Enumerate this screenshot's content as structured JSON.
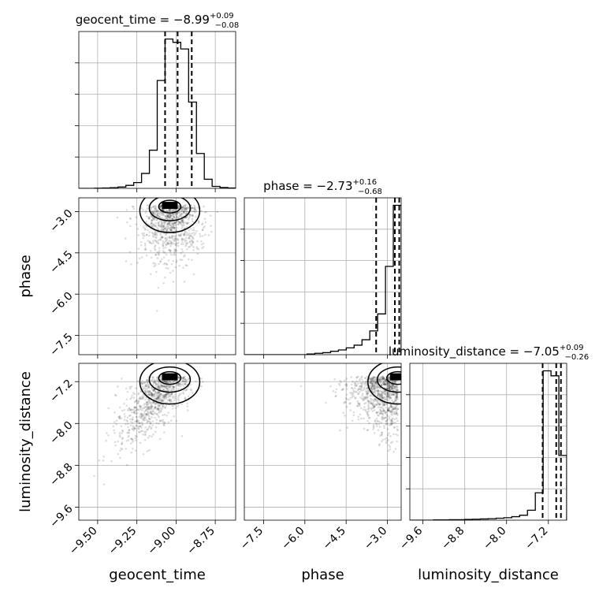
{
  "chart_data": {
    "type": "corner",
    "parameters": [
      {
        "name": "geocent_time",
        "xlabel": "geocent_time",
        "title_label": "geocent_time",
        "median": "−8.99",
        "upper": "+0.09",
        "lower": "−0.08",
        "range": [
          -9.62,
          -8.62
        ],
        "ticks": [
          -9.5,
          -9.25,
          -9.0,
          -8.75
        ],
        "tick_labels": [
          "−9.50",
          "−9.25",
          "−9.00",
          "−8.75"
        ],
        "quantiles": [
          -9.07,
          -8.99,
          -8.9
        ],
        "hist_edges": [
          -9.62,
          -9.57,
          -9.52,
          -9.47,
          -9.42,
          -9.37,
          -9.32,
          -9.27,
          -9.22,
          -9.17,
          -9.12,
          -9.07,
          -9.02,
          -8.97,
          -8.92,
          -8.87,
          -8.82,
          -8.77,
          -8.72,
          -8.67,
          -8.62
        ],
        "hist_counts": [
          0,
          0,
          1,
          2,
          4,
          8,
          18,
          35,
          90,
          230,
          650,
          900,
          880,
          840,
          520,
          210,
          55,
          12,
          5,
          2
        ]
      },
      {
        "name": "phase",
        "xlabel": "phase",
        "ylabel": "phase",
        "title_label": "phase",
        "median": "−2.73",
        "upper": "+0.16",
        "lower": "−0.68",
        "range": [
          -8.2,
          -2.5
        ],
        "ticks": [
          -7.5,
          -6.0,
          -4.5,
          -3.0
        ],
        "tick_labels": [
          "−7.5",
          "−6.0",
          "−4.5",
          "−3.0"
        ],
        "quantiles": [
          -3.41,
          -2.73,
          -2.57
        ],
        "hist_edges": [
          -8.2,
          -7.915,
          -7.63,
          -7.345,
          -7.06,
          -6.775,
          -6.49,
          -6.205,
          -5.92,
          -5.635,
          -5.35,
          -5.065,
          -4.78,
          -4.495,
          -4.21,
          -3.925,
          -3.64,
          -3.355,
          -3.07,
          -2.785,
          -2.5
        ],
        "hist_counts": [
          0,
          0,
          0,
          0,
          0,
          0,
          0,
          0,
          1,
          2,
          3,
          5,
          7,
          10,
          14,
          22,
          35,
          60,
          130,
          220
        ]
      },
      {
        "name": "luminosity_distance",
        "xlabel": "luminosity_distance",
        "ylabel": "luminosity_distance",
        "title_label": "luminosity_distance",
        "median": "−7.05",
        "upper": "+0.09",
        "lower": "−0.26",
        "range": [
          -9.85,
          -6.85
        ],
        "ticks": [
          -9.6,
          -8.8,
          -8.0,
          -7.2
        ],
        "tick_labels": [
          "−9.6",
          "−8.8",
          "−8.0",
          "−7.2"
        ],
        "quantiles": [
          -7.31,
          -7.05,
          -6.96
        ],
        "hist_edges": [
          -9.85,
          -9.7,
          -9.55,
          -9.4,
          -9.25,
          -9.1,
          -8.95,
          -8.8,
          -8.65,
          -8.5,
          -8.35,
          -8.2,
          -8.05,
          -7.9,
          -7.75,
          -7.6,
          -7.45,
          -7.3,
          -7.15,
          -7.0,
          -6.85
        ],
        "hist_counts": [
          0,
          0,
          0,
          1,
          1,
          2,
          2,
          3,
          4,
          5,
          6,
          8,
          10,
          14,
          20,
          40,
          110,
          600,
          580,
          260
        ]
      }
    ],
    "pairs": [
      {
        "x": "geocent_time",
        "y": "phase",
        "mode": [
          -9.04,
          -2.76
        ]
      },
      {
        "x": "geocent_time",
        "y": "luminosity_distance",
        "mode": [
          -9.04,
          -7.1
        ]
      },
      {
        "x": "phase",
        "y": "luminosity_distance",
        "mode": [
          -2.62,
          -7.1
        ]
      }
    ],
    "title_format": "{name} = {median}^{upper}_{lower}",
    "grid": true
  }
}
